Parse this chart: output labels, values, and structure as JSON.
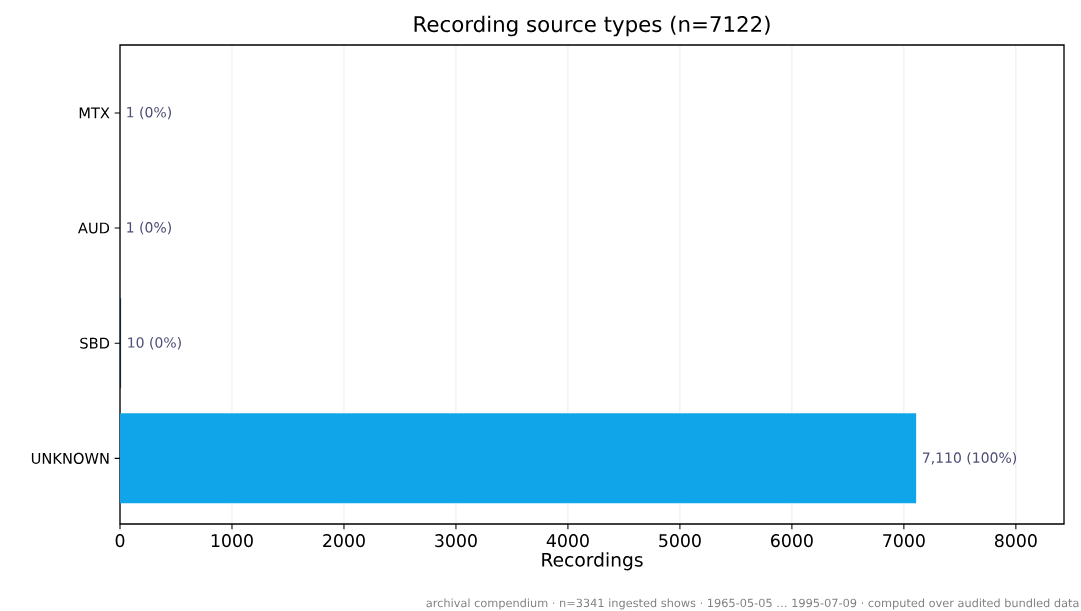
{
  "chart_data": {
    "type": "bar",
    "orientation": "horizontal",
    "title": "Recording source types (n=7122)",
    "xlabel": "Recordings",
    "categories": [
      "MTX",
      "AUD",
      "SBD",
      "UNKNOWN"
    ],
    "values": [
      1,
      1,
      10,
      7110
    ],
    "colors": [
      "#10283a",
      "#10283a",
      "#10283a",
      "#10a5e8"
    ],
    "value_labels": [
      "1 (0%)",
      "1 (0%)",
      "10 (0%)",
      "7,110 (100%)"
    ],
    "xlim": [
      0,
      8430
    ],
    "xticks": [
      0,
      1000,
      2000,
      3000,
      4000,
      5000,
      6000,
      7000,
      8000
    ],
    "grid": "x",
    "annotations": [
      "archival compendium · n=3341 ingested shows · 1965-05-05 … 1995-07-09 · computed over audited bundled data"
    ]
  }
}
